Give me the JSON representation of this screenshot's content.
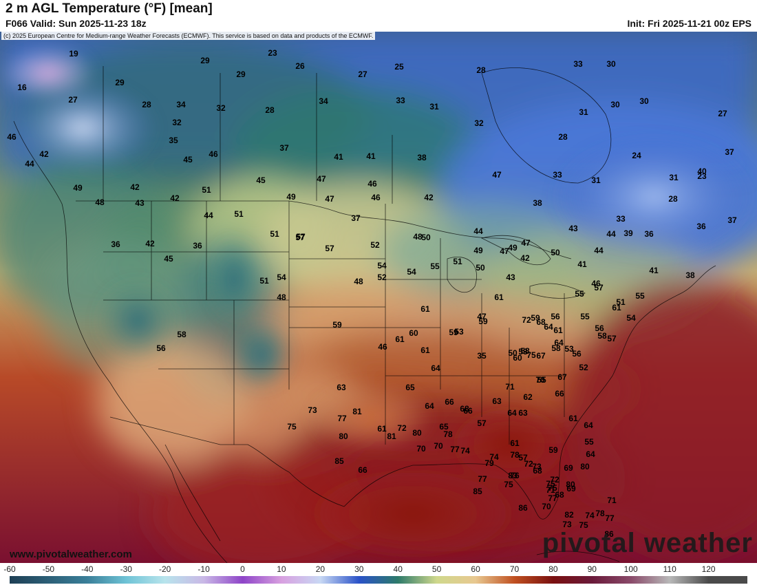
{
  "header": {
    "title": "2 m AGL Temperature (°F) [mean]",
    "valid": "F066 Valid: Sun 2025-11-23 18z",
    "init": "Init: Fri 2025-11-21 00z EPS"
  },
  "map": {
    "copyright": "(c) 2025 European Centre for Medium-range Weather Forecasts (ECMWF). This service is based on data and products of the ECMWF.",
    "website": "www.pivotalweather.com",
    "brand": "pivotal weather"
  },
  "colorbar": {
    "ticks": [
      "-60",
      "-50",
      "-40",
      "-30",
      "-20",
      "-10",
      "0",
      "10",
      "20",
      "30",
      "40",
      "50",
      "60",
      "70",
      "80",
      "90",
      "100",
      "110",
      "120"
    ],
    "stops": [
      {
        "value": -60,
        "color": "#1e3f55"
      },
      {
        "value": -40,
        "color": "#3a7f99"
      },
      {
        "value": -30,
        "color": "#6ec3d6"
      },
      {
        "value": -20,
        "color": "#b8e4ec"
      },
      {
        "value": -10,
        "color": "#c9b8e6"
      },
      {
        "value": 0,
        "color": "#8e44c8"
      },
      {
        "value": 10,
        "color": "#d8a0e0"
      },
      {
        "value": 20,
        "color": "#c8d8f4"
      },
      {
        "value": 30,
        "color": "#2a52c8"
      },
      {
        "value": 40,
        "color": "#2d7a6a"
      },
      {
        "value": 50,
        "color": "#cfd88c"
      },
      {
        "value": 60,
        "color": "#e8c890"
      },
      {
        "value": 70,
        "color": "#c05020"
      },
      {
        "value": 80,
        "color": "#7a1010"
      },
      {
        "value": 90,
        "color": "#6a1a3a"
      },
      {
        "value": 100,
        "color": "#8a4a6a"
      },
      {
        "value": 110,
        "color": "#b8b8b8"
      },
      {
        "value": 120,
        "color": "#4a4a4a"
      }
    ]
  },
  "temperatures": [
    "19",
    "16",
    "27",
    "29",
    "29",
    "28",
    "34",
    "32",
    "28",
    "23",
    "29",
    "26",
    "27",
    "25",
    "28",
    "30",
    "33",
    "30",
    "30",
    "27",
    "34",
    "33",
    "31",
    "32",
    "31",
    "32",
    "35",
    "37",
    "41",
    "41",
    "38",
    "28",
    "24",
    "37",
    "45",
    "46",
    "45",
    "47",
    "46",
    "51",
    "42",
    "49",
    "48",
    "42",
    "43",
    "44",
    "51",
    "47",
    "46",
    "36",
    "42",
    "36",
    "45",
    "46",
    "42",
    "49",
    "51",
    "57",
    "57",
    "52",
    "48",
    "50",
    "44",
    "49",
    "47",
    "47",
    "43",
    "44",
    "44",
    "39",
    "36",
    "37",
    "33",
    "38",
    "33",
    "31",
    "36",
    "31",
    "28",
    "23",
    "37",
    "48",
    "52",
    "54",
    "54",
    "55",
    "51",
    "50",
    "49",
    "47",
    "38",
    "40",
    "42",
    "54",
    "57",
    "48",
    "41",
    "44",
    "46",
    "41",
    "50",
    "42",
    "43",
    "47",
    "56",
    "58",
    "51",
    "46",
    "59",
    "61",
    "59",
    "60",
    "59",
    "61",
    "56",
    "55",
    "52",
    "53",
    "55",
    "57",
    "51",
    "54",
    "55",
    "56",
    "57",
    "61",
    "58",
    "55",
    "53",
    "50",
    "35",
    "58",
    "56",
    "53",
    "59",
    "60",
    "61",
    "61",
    "63",
    "64",
    "65",
    "64",
    "66",
    "68",
    "65",
    "66",
    "57",
    "63",
    "64",
    "62",
    "63",
    "67",
    "66",
    "67",
    "70",
    "71",
    "75",
    "72",
    "68",
    "64",
    "61",
    "64",
    "58",
    "61",
    "57",
    "59",
    "61",
    "64",
    "55",
    "64",
    "69",
    "69",
    "70",
    "71",
    "72",
    "73",
    "76",
    "78",
    "78",
    "80",
    "81",
    "81",
    "77",
    "73",
    "75",
    "80",
    "85",
    "66",
    "61",
    "72",
    "70",
    "70",
    "77",
    "74",
    "74",
    "83",
    "68",
    "75",
    "72",
    "75",
    "79",
    "77",
    "85",
    "86",
    "75",
    "77",
    "80",
    "80",
    "74",
    "73",
    "68",
    "82",
    "71",
    "78",
    "77",
    "75",
    "86"
  ]
}
